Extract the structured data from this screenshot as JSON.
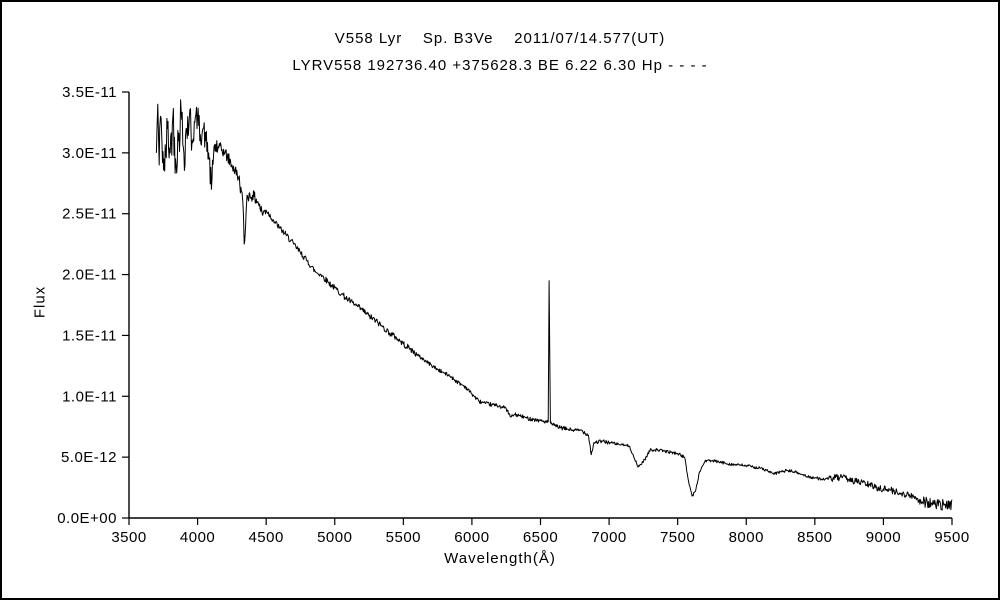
{
  "figure": {
    "title_line1": "V558 Lyr    Sp. B3Ve    2011/07/14.577(UT)",
    "title_line2": "LYRV558 192736.40 +375628.3 BE 6.22 6.30 Hp - - - -",
    "xlabel": "Wavelength(Å)",
    "ylabel": "Flux"
  },
  "chart_data": {
    "type": "line",
    "title": "V558 Lyr    Sp. B3Ve    2011/07/14.577(UT)",
    "subtitle": "LYRV558 192736.40 +375628.3 BE 6.22 6.30 Hp - - - -",
    "xlabel": "Wavelength(Å)",
    "ylabel": "Flux",
    "xlim": [
      3500,
      9500
    ],
    "ylim": [
      0,
      3.5e-11
    ],
    "grid": false,
    "legend": "none",
    "line_color": "#000000",
    "x_ticks": [
      3500,
      4000,
      4500,
      5000,
      5500,
      6000,
      6500,
      7000,
      7500,
      8000,
      8500,
      9000,
      9500
    ],
    "y_ticks": [
      {
        "value": 0,
        "label": "0.0E+00"
      },
      {
        "value": 5,
        "label": "5.0E-12"
      },
      {
        "value": 10,
        "label": "1.0E-11"
      },
      {
        "value": 15,
        "label": "1.5E-11"
      },
      {
        "value": 20,
        "label": "2.0E-11"
      },
      {
        "value": 25,
        "label": "2.5E-11"
      },
      {
        "value": 30,
        "label": "3.0E-11"
      },
      {
        "value": 35,
        "label": "3.5E-11"
      }
    ],
    "flux_values_scaled_by": 1e-12,
    "series": [
      {
        "name": "V558 Lyr spectrum",
        "points": [
          [
            3700,
            30
          ],
          [
            3710,
            34
          ],
          [
            3720,
            29
          ],
          [
            3730,
            33
          ],
          [
            3740,
            31
          ],
          [
            3760,
            28.5
          ],
          [
            3780,
            32
          ],
          [
            3800,
            30
          ],
          [
            3820,
            33
          ],
          [
            3840,
            29.5
          ],
          [
            3860,
            31
          ],
          [
            3880,
            33.5
          ],
          [
            3900,
            30
          ],
          [
            3920,
            32
          ],
          [
            3940,
            33
          ],
          [
            3960,
            31
          ],
          [
            3980,
            32.5
          ],
          [
            4000,
            33
          ],
          [
            4020,
            31.5
          ],
          [
            4040,
            32
          ],
          [
            4060,
            31
          ],
          [
            4080,
            30
          ],
          [
            4101,
            27
          ],
          [
            4120,
            30.5
          ],
          [
            4150,
            30.5
          ],
          [
            4200,
            30
          ],
          [
            4250,
            29
          ],
          [
            4300,
            28
          ],
          [
            4330,
            26
          ],
          [
            4340,
            22.5
          ],
          [
            4350,
            24
          ],
          [
            4360,
            26.5
          ],
          [
            4400,
            26.5
          ],
          [
            4440,
            26
          ],
          [
            4471,
            25
          ],
          [
            4500,
            25.3
          ],
          [
            4550,
            24.5
          ],
          [
            4600,
            23.8
          ],
          [
            4650,
            23.2
          ],
          [
            4700,
            22.5
          ],
          [
            4750,
            21.8
          ],
          [
            4800,
            21.1
          ],
          [
            4861,
            20.2
          ],
          [
            4900,
            20
          ],
          [
            4950,
            19.4
          ],
          [
            5000,
            18.9
          ],
          [
            5050,
            18.4
          ],
          [
            5100,
            17.9
          ],
          [
            5150,
            17.5
          ],
          [
            5200,
            17.1
          ],
          [
            5250,
            16.6
          ],
          [
            5300,
            16.2
          ],
          [
            5350,
            15.7
          ],
          [
            5400,
            15.2
          ],
          [
            5450,
            14.8
          ],
          [
            5500,
            14.3
          ],
          [
            5550,
            13.9
          ],
          [
            5600,
            13.4
          ],
          [
            5650,
            13.0
          ],
          [
            5700,
            12.6
          ],
          [
            5750,
            12.2
          ],
          [
            5800,
            11.9
          ],
          [
            5850,
            11.6
          ],
          [
            5890,
            11.2
          ],
          [
            5950,
            10.8
          ],
          [
            6000,
            10.2
          ],
          [
            6050,
            9.6
          ],
          [
            6100,
            9.4
          ],
          [
            6150,
            9.3
          ],
          [
            6200,
            9.2
          ],
          [
            6250,
            9.0
          ],
          [
            6280,
            8.3
          ],
          [
            6310,
            8.5
          ],
          [
            6350,
            8.4
          ],
          [
            6400,
            8.2
          ],
          [
            6450,
            8.1
          ],
          [
            6500,
            8.0
          ],
          [
            6540,
            7.9
          ],
          [
            6556,
            7.9
          ],
          [
            6560,
            14
          ],
          [
            6563,
            19.5
          ],
          [
            6567,
            14
          ],
          [
            6572,
            7.8
          ],
          [
            6600,
            7.6
          ],
          [
            6650,
            7.4
          ],
          [
            6700,
            7.3
          ],
          [
            6750,
            7.2
          ],
          [
            6800,
            7.2
          ],
          [
            6850,
            6.8
          ],
          [
            6870,
            5.2
          ],
          [
            6890,
            6.2
          ],
          [
            6950,
            6.3
          ],
          [
            7000,
            6.2
          ],
          [
            7050,
            6.1
          ],
          [
            7100,
            6.0
          ],
          [
            7150,
            5.9
          ],
          [
            7180,
            5.0
          ],
          [
            7210,
            4.2
          ],
          [
            7230,
            4.4
          ],
          [
            7260,
            4.8
          ],
          [
            7300,
            5.6
          ],
          [
            7350,
            5.6
          ],
          [
            7400,
            5.5
          ],
          [
            7450,
            5.4
          ],
          [
            7500,
            5.3
          ],
          [
            7550,
            5.0
          ],
          [
            7580,
            3.0
          ],
          [
            7605,
            1.8
          ],
          [
            7630,
            2.2
          ],
          [
            7660,
            3.8
          ],
          [
            7700,
            4.7
          ],
          [
            7750,
            4.7
          ],
          [
            7800,
            4.6
          ],
          [
            7850,
            4.5
          ],
          [
            7900,
            4.4
          ],
          [
            7950,
            4.35
          ],
          [
            8000,
            4.3
          ],
          [
            8050,
            4.2
          ],
          [
            8100,
            4.1
          ],
          [
            8150,
            3.9
          ],
          [
            8200,
            3.6
          ],
          [
            8250,
            3.8
          ],
          [
            8300,
            3.9
          ],
          [
            8350,
            3.8
          ],
          [
            8400,
            3.6
          ],
          [
            8450,
            3.4
          ],
          [
            8500,
            3.3
          ],
          [
            8550,
            3.2
          ],
          [
            8600,
            3.2
          ],
          [
            8650,
            3.3
          ],
          [
            8700,
            3.3
          ],
          [
            8750,
            3.2
          ],
          [
            8800,
            3.0
          ],
          [
            8850,
            2.9
          ],
          [
            8900,
            2.7
          ],
          [
            8950,
            2.5
          ],
          [
            9000,
            2.4
          ],
          [
            9050,
            2.3
          ],
          [
            9100,
            2.1
          ],
          [
            9150,
            2.0
          ],
          [
            9200,
            1.8
          ],
          [
            9250,
            1.6
          ],
          [
            9300,
            1.4
          ],
          [
            9350,
            1.2
          ],
          [
            9400,
            1.0
          ],
          [
            9450,
            1.1
          ],
          [
            9480,
            0.8
          ],
          [
            9500,
            1.5
          ]
        ]
      }
    ],
    "noise_segments": [
      {
        "range": [
          3700,
          3960
        ],
        "amp": 2.0
      },
      {
        "range": [
          3960,
          4150
        ],
        "amp": 1.1
      },
      {
        "range": [
          4150,
          4500
        ],
        "amp": 0.5
      },
      {
        "range": [
          4500,
          5600
        ],
        "amp": 0.25
      },
      {
        "range": [
          5600,
          7000
        ],
        "amp": 0.16
      },
      {
        "range": [
          7000,
          8600
        ],
        "amp": 0.12
      },
      {
        "range": [
          8600,
          9250
        ],
        "amp": 0.28
      },
      {
        "range": [
          9250,
          9500
        ],
        "amp": 0.55
      }
    ]
  }
}
